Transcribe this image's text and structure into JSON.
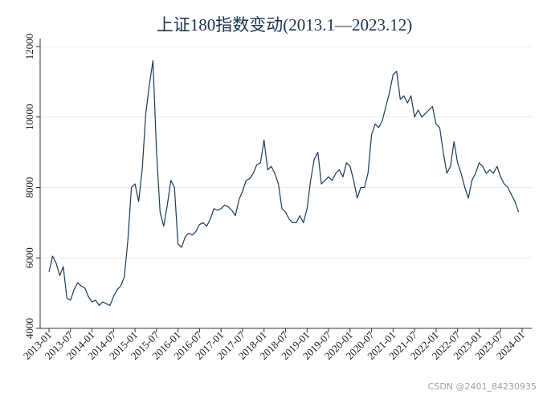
{
  "chart_data": {
    "type": "line",
    "title": "上证180指数变动(2013.1—2023.12)",
    "xlabel": "",
    "ylabel": "",
    "ylim": [
      4000,
      12000
    ],
    "yticks": [
      4000,
      6000,
      8000,
      10000,
      12000
    ],
    "ytick_labels": [
      "4000",
      "6000",
      "8000",
      "10000",
      "12000"
    ],
    "xlim": [
      "2013-01",
      "2024-01"
    ],
    "xtick_labels": [
      "2013-01",
      "2013-07",
      "2014-01",
      "2014-07",
      "2015-01",
      "2015-07",
      "2016-01",
      "2016-07",
      "2017-01",
      "2017-07",
      "2018-01",
      "2018-07",
      "2019-01",
      "2019-07",
      "2020-01",
      "2020-07",
      "2021-01",
      "2021-07",
      "2022-01",
      "2022-07",
      "2023-01",
      "2023-07",
      "2024-01"
    ],
    "grid": true,
    "line_color": "#1a3a5c",
    "series": [
      {
        "x": [
          "2013-01",
          "2013-02",
          "2013-03",
          "2013-04",
          "2013-05",
          "2013-06",
          "2013-07",
          "2013-08",
          "2013-09",
          "2013-10",
          "2013-11",
          "2013-12",
          "2014-01",
          "2014-02",
          "2014-03",
          "2014-04",
          "2014-05",
          "2014-06",
          "2014-07",
          "2014-08",
          "2014-09",
          "2014-10",
          "2014-11",
          "2014-12",
          "2015-01",
          "2015-02",
          "2015-03",
          "2015-04",
          "2015-05",
          "2015-06",
          "2015-07",
          "2015-08",
          "2015-09",
          "2015-10",
          "2015-11",
          "2015-12",
          "2016-01",
          "2016-02",
          "2016-03",
          "2016-04",
          "2016-05",
          "2016-06",
          "2016-07",
          "2016-08",
          "2016-09",
          "2016-10",
          "2016-11",
          "2016-12",
          "2017-01",
          "2017-02",
          "2017-03",
          "2017-04",
          "2017-05",
          "2017-06",
          "2017-07",
          "2017-08",
          "2017-09",
          "2017-10",
          "2017-11",
          "2017-12",
          "2018-01",
          "2018-02",
          "2018-03",
          "2018-04",
          "2018-05",
          "2018-06",
          "2018-07",
          "2018-08",
          "2018-09",
          "2018-10",
          "2018-11",
          "2018-12",
          "2019-01",
          "2019-02",
          "2019-03",
          "2019-04",
          "2019-05",
          "2019-06",
          "2019-07",
          "2019-08",
          "2019-09",
          "2019-10",
          "2019-11",
          "2019-12",
          "2020-01",
          "2020-02",
          "2020-03",
          "2020-04",
          "2020-05",
          "2020-06",
          "2020-07",
          "2020-08",
          "2020-09",
          "2020-10",
          "2020-11",
          "2020-12",
          "2021-01",
          "2021-02",
          "2021-03",
          "2021-04",
          "2021-05",
          "2021-06",
          "2021-07",
          "2021-08",
          "2021-09",
          "2021-10",
          "2021-11",
          "2021-12",
          "2022-01",
          "2022-02",
          "2022-03",
          "2022-04",
          "2022-05",
          "2022-06",
          "2022-07",
          "2022-08",
          "2022-09",
          "2022-10",
          "2022-11",
          "2022-12",
          "2023-01",
          "2023-02",
          "2023-03",
          "2023-04",
          "2023-05",
          "2023-06",
          "2023-07",
          "2023-08",
          "2023-09",
          "2023-10",
          "2023-11",
          "2023-12"
        ],
        "values": [
          5600,
          6050,
          5850,
          5500,
          5750,
          4850,
          4800,
          5100,
          5300,
          5200,
          5150,
          4900,
          4750,
          4800,
          4650,
          4750,
          4700,
          4650,
          4900,
          5100,
          5200,
          5450,
          6500,
          8000,
          8100,
          7600,
          8500,
          10100,
          10900,
          11600,
          9000,
          7300,
          6900,
          7500,
          8200,
          8000,
          6400,
          6300,
          6600,
          6700,
          6650,
          6750,
          6950,
          7000,
          6900,
          7100,
          7400,
          7350,
          7400,
          7500,
          7450,
          7350,
          7200,
          7650,
          7900,
          8200,
          8250,
          8400,
          8650,
          8700,
          9350,
          8500,
          8600,
          8400,
          8100,
          7400,
          7300,
          7100,
          7000,
          7000,
          7200,
          7000,
          7400,
          8200,
          8800,
          9000,
          8100,
          8200,
          8300,
          8200,
          8400,
          8500,
          8300,
          8700,
          8600,
          8200,
          7700,
          8000,
          8000,
          8400,
          9500,
          9800,
          9700,
          9900,
          10300,
          10700,
          11200,
          11300,
          10500,
          10600,
          10400,
          10600,
          10000,
          10200,
          10000,
          10100,
          10200,
          10300,
          9800,
          9700,
          9000,
          8400,
          8600,
          9300,
          8700,
          8400,
          8000,
          7700,
          8200,
          8400,
          8700,
          8600,
          8400,
          8500,
          8400,
          8600,
          8300,
          8100,
          8000,
          7800,
          7600,
          7300
        ]
      }
    ]
  },
  "watermark": "CSDN @2401_84230935"
}
